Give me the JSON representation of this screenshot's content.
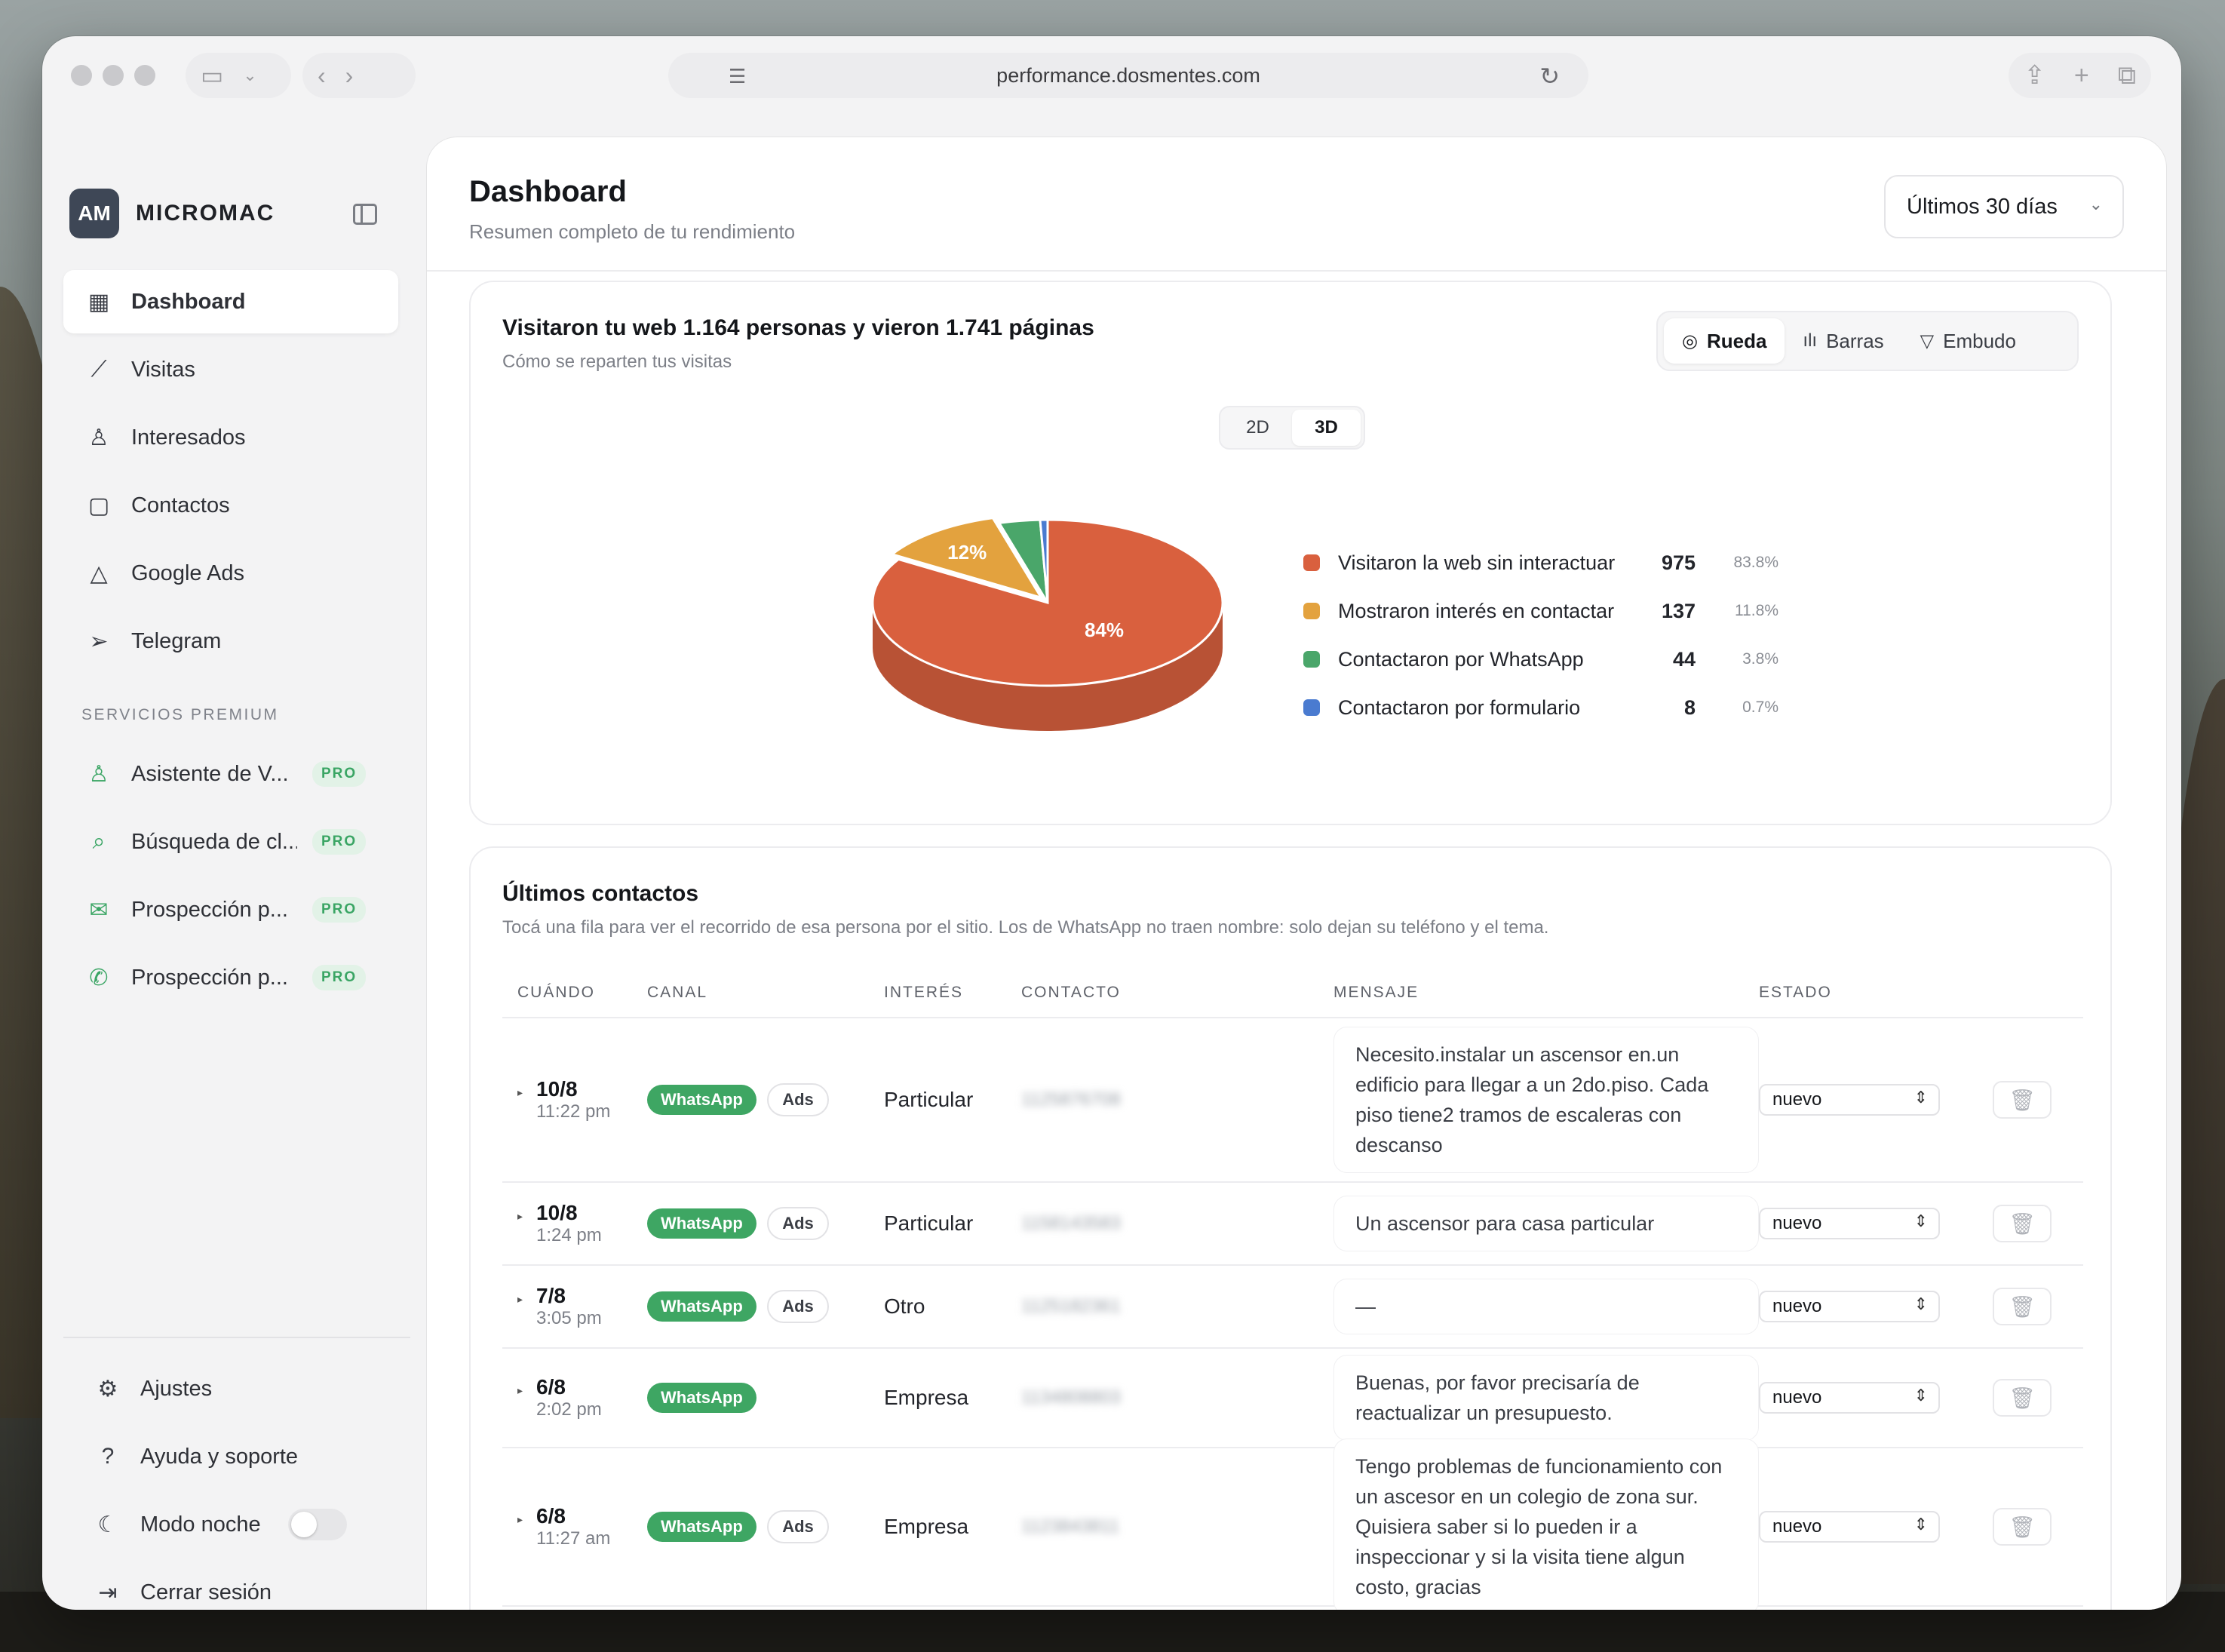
{
  "browser": {
    "url": "performance.dosmentes.com"
  },
  "brand": {
    "initials": "AM",
    "name": "MICROMAC"
  },
  "sidebar": {
    "items": [
      {
        "label": "Dashboard",
        "icon": "grid-icon"
      },
      {
        "label": "Visitas",
        "icon": "trend-icon"
      },
      {
        "label": "Interesados",
        "icon": "user-icon"
      },
      {
        "label": "Contactos",
        "icon": "chat-icon"
      },
      {
        "label": "Google Ads",
        "icon": "warning-triangle-icon"
      },
      {
        "label": "Telegram",
        "icon": "send-icon"
      }
    ],
    "premium_title": "SERVICIOS PREMIUM",
    "premium_items": [
      {
        "label": "Asistente de V...",
        "badge": "PRO",
        "icon": "user-icon"
      },
      {
        "label": "Búsqueda de cl...",
        "badge": "PRO",
        "icon": "search-icon"
      },
      {
        "label": "Prospección p...",
        "badge": "PRO",
        "icon": "mail-icon"
      },
      {
        "label": "Prospección p...",
        "badge": "PRO",
        "icon": "phone-icon"
      }
    ],
    "bottom": {
      "settings": "Ajustes",
      "help": "Ayuda y soporte",
      "night": "Modo noche",
      "night_on": false,
      "logout": "Cerrar sesión"
    }
  },
  "header": {
    "title": "Dashboard",
    "subtitle": "Resumen completo de tu rendimiento",
    "range": "Últimos 30 días"
  },
  "visits_card": {
    "title": "Visitaron tu web 1.164 personas y vieron 1.741 páginas",
    "subtitle": "Cómo se reparten tus visitas",
    "views": {
      "pie": "Rueda",
      "bars": "Barras",
      "funnel": "Embudo"
    },
    "dims": {
      "d2": "2D",
      "d3": "3D"
    },
    "selected_dim": "3D"
  },
  "chart_data": {
    "type": "pie",
    "labels": [
      "Visitaron la web sin interactuar",
      "Mostraron interés en contactar",
      "Contactaron por WhatsApp",
      "Contactaron por formulario"
    ],
    "values": [
      975,
      137,
      44,
      8
    ],
    "percents": [
      "83.8%",
      "11.8%",
      "3.8%",
      "0.7%"
    ],
    "slice_labels": [
      "84%",
      "12%",
      "",
      ""
    ],
    "colors": [
      "#d9603e",
      "#e3a23e",
      "#4aa66a",
      "#4a7bd0"
    ]
  },
  "contacts": {
    "title": "Últimos contactos",
    "subtitle": "Tocá una fila para ver el recorrido de esa persona por el sitio. Los de WhatsApp no traen nombre: solo dejan su teléfono y el tema.",
    "columns": [
      "CUÁNDO",
      "CANAL",
      "INTERÉS",
      "CONTACTO",
      "MENSAJE",
      "ESTADO"
    ],
    "rows": [
      {
        "date": "10/8",
        "time": "11:22 pm",
        "channel": "WhatsApp",
        "ads": "Ads",
        "interest": "Particular",
        "contact": "1125876708",
        "message": "Necesito.instalar un ascensor en.un edificio para llegar a un 2do.piso. Cada piso tiene2 tramos de escaleras con descanso",
        "status": "nuevo"
      },
      {
        "date": "10/8",
        "time": "1:24 pm",
        "channel": "WhatsApp",
        "ads": "Ads",
        "interest": "Particular",
        "contact": "1158143583",
        "message": "Un ascensor para casa particular",
        "status": "nuevo"
      },
      {
        "date": "7/8",
        "time": "3:05 pm",
        "channel": "WhatsApp",
        "ads": "Ads",
        "interest": "Otro",
        "contact": "1125182361",
        "message": "—",
        "status": "nuevo"
      },
      {
        "date": "6/8",
        "time": "2:02 pm",
        "channel": "WhatsApp",
        "ads": "",
        "interest": "Empresa",
        "contact": "1134808803",
        "message": "Buenas, por favor precisaría de reactualizar un presupuesto.",
        "status": "nuevo"
      },
      {
        "date": "6/8",
        "time": "11:27 am",
        "channel": "WhatsApp",
        "ads": "Ads",
        "interest": "Empresa",
        "contact": "1123843811",
        "message": "Tengo problemas de funcionamiento con un ascesor en un colegio de zona sur. Quisiera saber si lo pueden ir a inspeccionar y si la visita tiene algun costo, gracias",
        "status": "nuevo"
      }
    ]
  }
}
